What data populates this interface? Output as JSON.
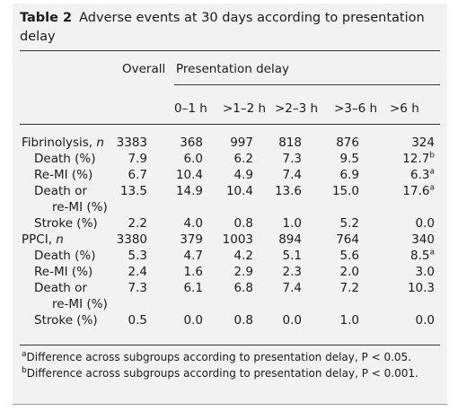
{
  "table": {
    "label": "Table 2",
    "title": "Adverse events at 30 days according to presentation delay",
    "header": {
      "overall": "Overall",
      "group": "Presentation delay",
      "columns": [
        "0–1 h",
        ">1–2 h",
        ">2–3 h",
        ">3–6 h",
        ">6 h"
      ]
    },
    "rows": [
      {
        "label": "Fibrinolysis, n",
        "values": [
          "3383",
          "368",
          "997",
          "818",
          "876",
          "324"
        ]
      },
      {
        "label": "Death (%)",
        "values": [
          "7.9",
          "6.0",
          "6.2",
          "7.3",
          "9.5",
          "12.7"
        ],
        "sup": "b"
      },
      {
        "label": "Re-MI (%)",
        "values": [
          "6.7",
          "10.4",
          "4.9",
          "7.4",
          "6.9",
          "6.3"
        ],
        "sup": "a"
      },
      {
        "label": "Death or",
        "label2": "re-MI (%)",
        "values": [
          "13.5",
          "14.9",
          "10.4",
          "13.6",
          "15.0",
          "17.6"
        ],
        "sup": "a"
      },
      {
        "label": "Stroke (%)",
        "values": [
          "2.2",
          "4.0",
          "0.8",
          "1.0",
          "5.2",
          "0.0"
        ]
      },
      {
        "label": "PPCI, n",
        "values": [
          "3380",
          "379",
          "1003",
          "894",
          "764",
          "340"
        ]
      },
      {
        "label": "Death (%)",
        "values": [
          "5.3",
          "4.7",
          "4.2",
          "5.1",
          "5.6",
          "8.5"
        ],
        "sup": "a"
      },
      {
        "label": "Re-MI (%)",
        "values": [
          "2.4",
          "1.6",
          "2.9",
          "2.3",
          "2.0",
          "3.0"
        ]
      },
      {
        "label": "Death or",
        "label2": "re-MI (%)",
        "values": [
          "7.3",
          "6.1",
          "6.8",
          "7.4",
          "7.2",
          "10.3"
        ]
      },
      {
        "label": "Stroke (%)",
        "values": [
          "0.5",
          "0.0",
          "0.8",
          "0.0",
          "1.0",
          "0.0"
        ]
      }
    ],
    "footnotes": [
      {
        "mark": "a",
        "text": "Difference across subgroups according to presentation delay, P < 0.05."
      },
      {
        "mark": "b",
        "text": "Difference across subgroups according to presentation delay, P < 0.001."
      }
    ]
  }
}
